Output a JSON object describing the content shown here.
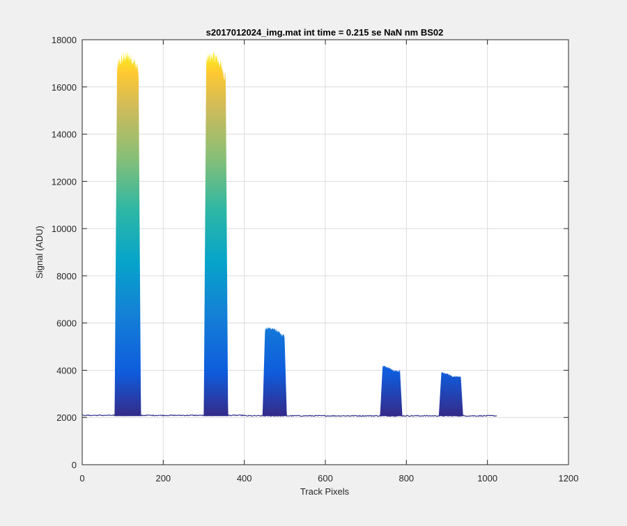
{
  "chart_data": {
    "type": "area",
    "title": "s2017012024_img.mat int time = 0.215 se  NaN nm BS02",
    "xlabel": "Track Pixels",
    "ylabel": "Signal (ADU)",
    "xlim": [
      0,
      1200
    ],
    "ylim": [
      0,
      18000
    ],
    "xticks": [
      0,
      200,
      400,
      600,
      800,
      1000,
      1200
    ],
    "yticks": [
      0,
      2000,
      4000,
      6000,
      8000,
      10000,
      12000,
      14000,
      16000,
      18000
    ],
    "grid": true,
    "colormap": "parula",
    "colors": {
      "background": "#f0f0f0",
      "axes": "#ffffff",
      "grid": "#dcdcdc",
      "baseline": "#2e2f8c"
    },
    "x_range": [
      1,
      1024
    ],
    "baseline_level": 2080,
    "peaks": [
      {
        "x_start": 80,
        "x_end": 145,
        "plateau": 16800,
        "max": 17600
      },
      {
        "x_start": 300,
        "x_end": 360,
        "plateau": 16800,
        "max": 17600
      },
      {
        "x_start": 445,
        "x_end": 505,
        "plateau": 5600,
        "max": 5900
      },
      {
        "x_start": 735,
        "x_end": 790,
        "plateau": 4050,
        "max": 4250
      },
      {
        "x_start": 880,
        "x_end": 940,
        "plateau": 3800,
        "max": 3950
      }
    ]
  }
}
